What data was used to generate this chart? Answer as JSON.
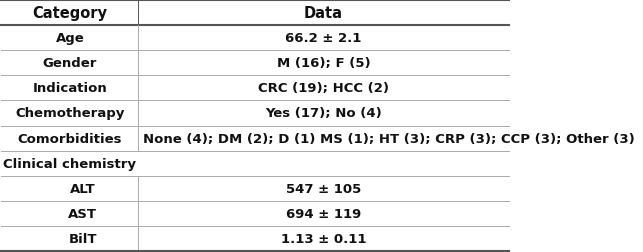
{
  "col_headers": [
    "Category",
    "Data"
  ],
  "rows": [
    {
      "category": "Age",
      "data": "66.2 ± 2.1",
      "cat_indent": false,
      "data_center": true
    },
    {
      "category": "Gender",
      "data": "M (16); F (5)",
      "cat_indent": false,
      "data_center": true
    },
    {
      "category": "Indication",
      "data": "CRC (19); HCC (2)",
      "cat_indent": false,
      "data_center": true
    },
    {
      "category": "Chemotherapy",
      "data": "Yes (17); No (4)",
      "cat_indent": false,
      "data_center": true
    },
    {
      "category": "Comorbidities",
      "data": "None (4); DM (2); D (1) MS (1); HT (3); CRP (3); CCP (3); Other (3)",
      "cat_indent": false,
      "data_center": false
    },
    {
      "category": "Clinical chemistry",
      "data": "",
      "cat_indent": false,
      "data_center": true
    },
    {
      "category": "ALT",
      "data": "547 ± 105",
      "cat_indent": true,
      "data_center": true
    },
    {
      "category": "AST",
      "data": "694 ± 119",
      "cat_indent": true,
      "data_center": true
    },
    {
      "category": "BilT",
      "data": "1.13 ± 0.11",
      "cat_indent": true,
      "data_center": true
    }
  ],
  "col_split": 0.27,
  "background_color": "#ffffff",
  "header_line_color": "#555555",
  "row_line_color": "#aaaaaa",
  "text_color": "#111111",
  "font_size": 9.5,
  "header_font_size": 10.5
}
